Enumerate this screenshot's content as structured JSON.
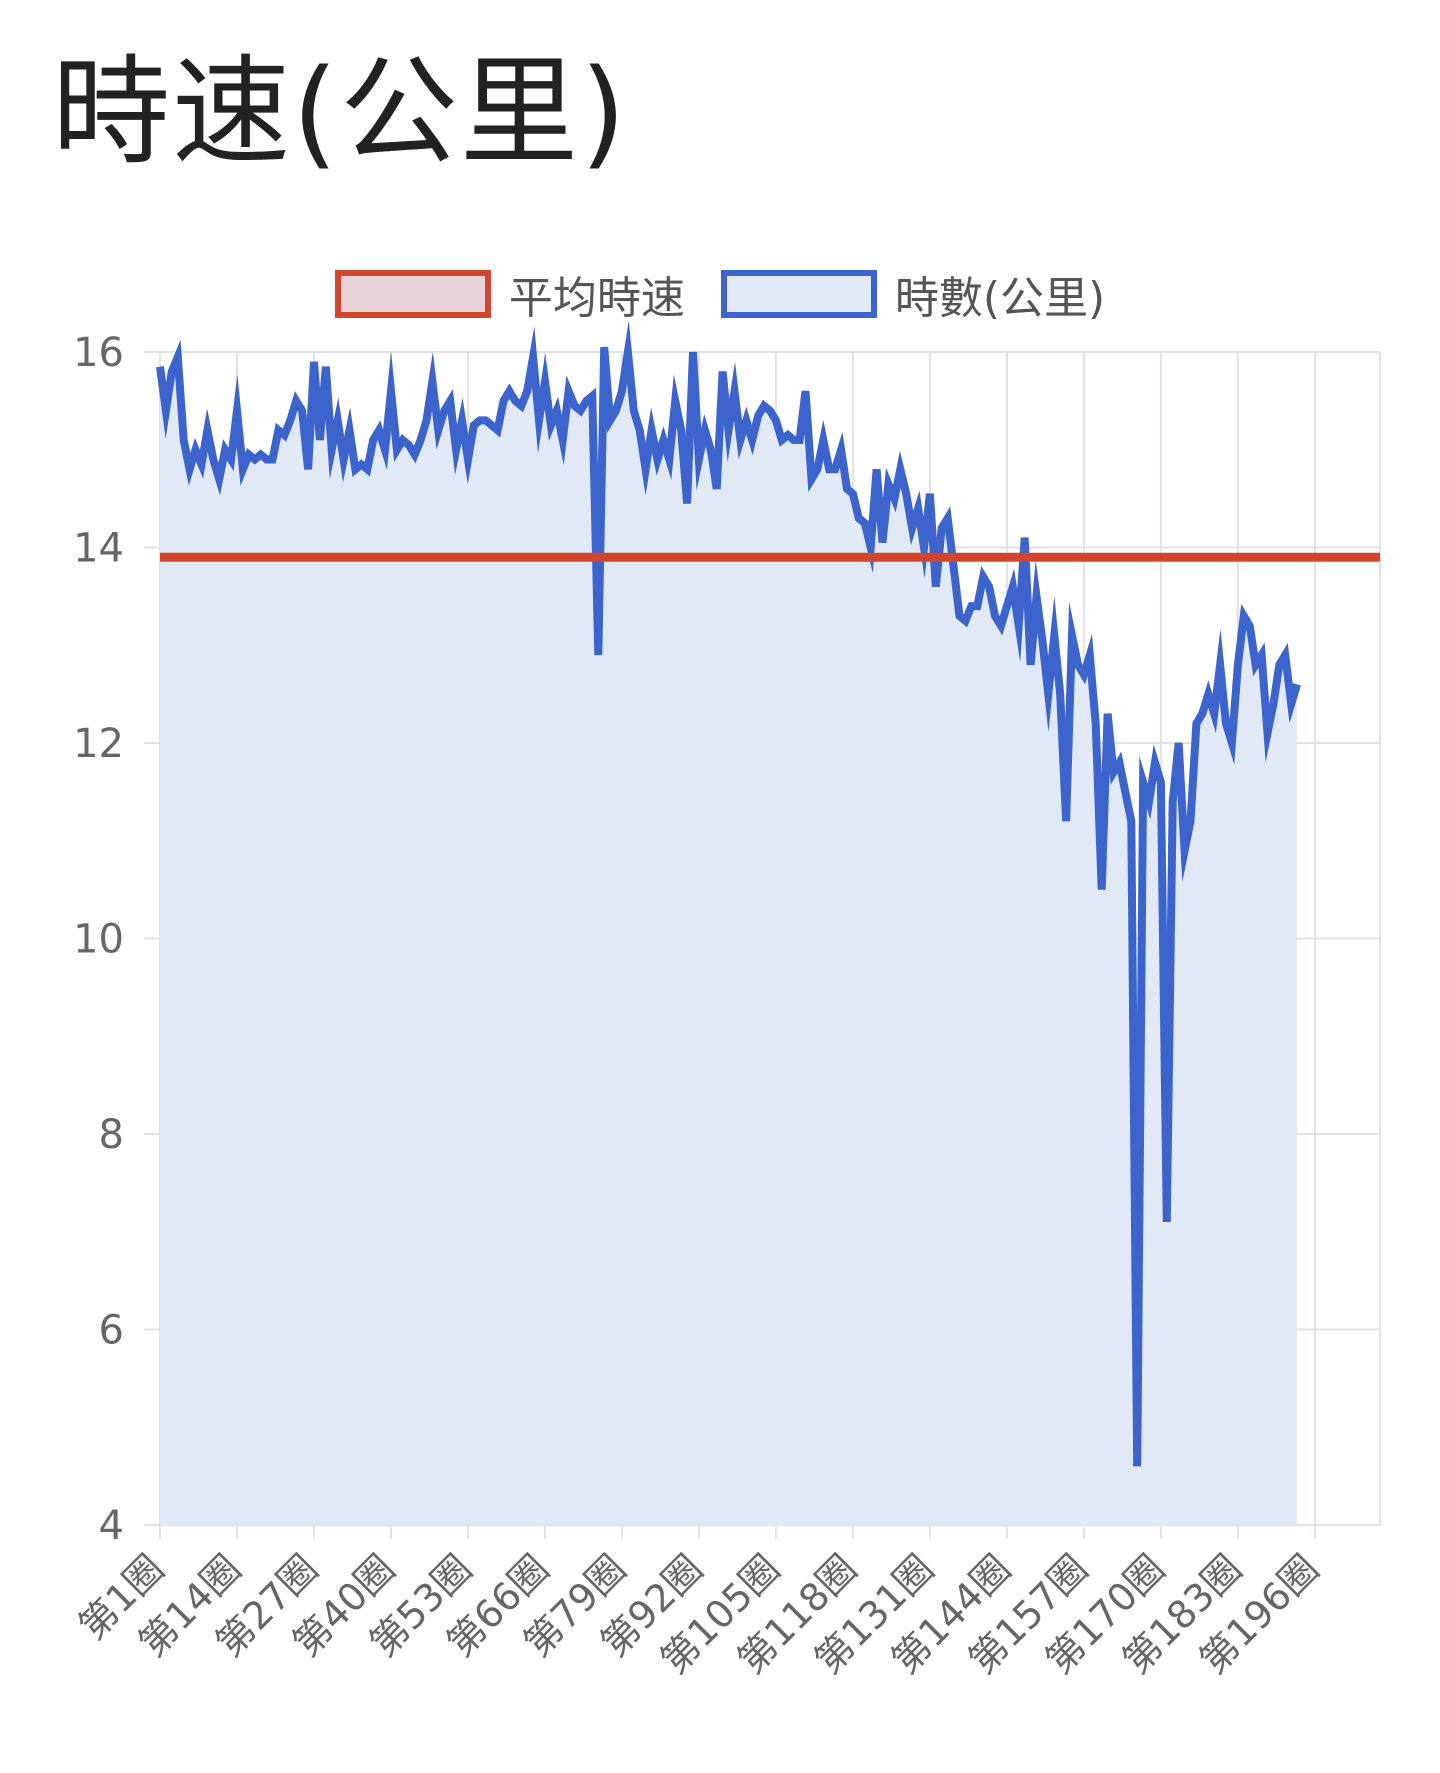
{
  "colors": {
    "avg": "#d2462d",
    "avg_fill": "#e9d3d8",
    "series": "#3c64cc",
    "series_fill": "#e1e8f6",
    "grid": "#e2e2e2"
  },
  "chart_data": {
    "type": "line",
    "title": "時速(公里)",
    "legend_position": "top",
    "grid": true,
    "ylim": [
      4,
      16
    ],
    "yticks": [
      4,
      6,
      8,
      10,
      12,
      14,
      16
    ],
    "xticks": [
      "第1圈",
      "第14圈",
      "第27圈",
      "第40圈",
      "第53圈",
      "第66圈",
      "第79圈",
      "第92圈",
      "第105圈",
      "第118圈",
      "第131圈",
      "第144圈",
      "第157圈",
      "第170圈",
      "第183圈",
      "第196圈"
    ],
    "x_count": 207,
    "series": [
      {
        "name": "平均時速",
        "constant": 13.9,
        "fill": true
      },
      {
        "name": "時數(公里)",
        "fill": true,
        "keypoints": [
          [
            1,
            15.85
          ],
          [
            2,
            15.4
          ],
          [
            3,
            15.8
          ],
          [
            4,
            15.95
          ],
          [
            5,
            15.1
          ],
          [
            6,
            14.8
          ],
          [
            7,
            15.0
          ],
          [
            8,
            14.85
          ],
          [
            9,
            15.2
          ],
          [
            10,
            14.9
          ],
          [
            11,
            14.7
          ],
          [
            12,
            15.0
          ],
          [
            13,
            14.9
          ],
          [
            14,
            15.4
          ],
          [
            15,
            14.8
          ],
          [
            16,
            14.95
          ],
          [
            17,
            14.9
          ],
          [
            18,
            14.95
          ],
          [
            19,
            14.9
          ],
          [
            20,
            14.9
          ],
          [
            21,
            15.2
          ],
          [
            22,
            15.15
          ],
          [
            23,
            15.3
          ],
          [
            24,
            15.5
          ],
          [
            25,
            15.4
          ],
          [
            26,
            14.8
          ],
          [
            27,
            15.9
          ],
          [
            28,
            15.1
          ],
          [
            29,
            15.85
          ],
          [
            30,
            15.0
          ],
          [
            31,
            15.3
          ],
          [
            32,
            14.9
          ],
          [
            33,
            15.2
          ],
          [
            34,
            14.8
          ],
          [
            35,
            14.85
          ],
          [
            36,
            14.8
          ],
          [
            37,
            15.1
          ],
          [
            38,
            15.2
          ],
          [
            39,
            15.0
          ],
          [
            40,
            15.6
          ],
          [
            41,
            15.0
          ],
          [
            42,
            15.1
          ],
          [
            43,
            15.05
          ],
          [
            44,
            14.95
          ],
          [
            45,
            15.1
          ],
          [
            46,
            15.3
          ],
          [
            47,
            15.7
          ],
          [
            48,
            15.2
          ],
          [
            49,
            15.4
          ],
          [
            50,
            15.5
          ],
          [
            51,
            15.0
          ],
          [
            52,
            15.3
          ],
          [
            53,
            14.9
          ],
          [
            54,
            15.25
          ],
          [
            55,
            15.3
          ],
          [
            56,
            15.3
          ],
          [
            57,
            15.25
          ],
          [
            58,
            15.2
          ],
          [
            59,
            15.5
          ],
          [
            60,
            15.6
          ],
          [
            61,
            15.5
          ],
          [
            62,
            15.45
          ],
          [
            63,
            15.6
          ],
          [
            64,
            15.95
          ],
          [
            65,
            15.3
          ],
          [
            66,
            15.7
          ],
          [
            67,
            15.25
          ],
          [
            68,
            15.4
          ],
          [
            69,
            15.1
          ],
          [
            70,
            15.6
          ],
          [
            71,
            15.45
          ],
          [
            72,
            15.4
          ],
          [
            73,
            15.5
          ],
          [
            74,
            15.55
          ],
          [
            75,
            12.9
          ],
          [
            76,
            16.05
          ],
          [
            77,
            15.3
          ],
          [
            78,
            15.4
          ],
          [
            79,
            15.6
          ],
          [
            80,
            16.0
          ],
          [
            81,
            15.4
          ],
          [
            82,
            15.2
          ],
          [
            83,
            14.8
          ],
          [
            84,
            15.2
          ],
          [
            85,
            14.9
          ],
          [
            86,
            15.1
          ],
          [
            87,
            14.9
          ],
          [
            88,
            15.5
          ],
          [
            89,
            15.2
          ],
          [
            90,
            14.45
          ],
          [
            91,
            16.0
          ],
          [
            92,
            14.9
          ],
          [
            93,
            15.2
          ],
          [
            94,
            15.0
          ],
          [
            95,
            14.6
          ],
          [
            96,
            15.8
          ],
          [
            97,
            15.2
          ],
          [
            98,
            15.6
          ],
          [
            99,
            15.1
          ],
          [
            100,
            15.3
          ],
          [
            101,
            15.1
          ],
          [
            102,
            15.35
          ],
          [
            103,
            15.45
          ],
          [
            104,
            15.4
          ],
          [
            105,
            15.3
          ],
          [
            106,
            15.1
          ],
          [
            107,
            15.15
          ],
          [
            108,
            15.1
          ],
          [
            109,
            15.1
          ],
          [
            110,
            15.6
          ],
          [
            111,
            14.7
          ],
          [
            112,
            14.8
          ],
          [
            113,
            15.1
          ],
          [
            114,
            14.8
          ],
          [
            115,
            14.8
          ],
          [
            116,
            15.0
          ],
          [
            117,
            14.6
          ],
          [
            118,
            14.55
          ],
          [
            119,
            14.3
          ],
          [
            120,
            14.25
          ],
          [
            121,
            14.0
          ],
          [
            122,
            14.8
          ],
          [
            123,
            14.05
          ],
          [
            124,
            14.65
          ],
          [
            125,
            14.5
          ],
          [
            126,
            14.8
          ],
          [
            127,
            14.55
          ],
          [
            128,
            14.2
          ],
          [
            129,
            14.4
          ],
          [
            130,
            14.0
          ],
          [
            131,
            14.55
          ],
          [
            132,
            13.6
          ],
          [
            133,
            14.2
          ],
          [
            134,
            14.3
          ],
          [
            135,
            13.8
          ],
          [
            136,
            13.3
          ],
          [
            137,
            13.25
          ],
          [
            138,
            13.4
          ],
          [
            139,
            13.4
          ],
          [
            140,
            13.7
          ],
          [
            141,
            13.6
          ],
          [
            142,
            13.3
          ],
          [
            143,
            13.2
          ],
          [
            144,
            13.4
          ],
          [
            145,
            13.6
          ],
          [
            146,
            13.2
          ],
          [
            147,
            14.1
          ],
          [
            148,
            12.8
          ],
          [
            149,
            13.5
          ],
          [
            150,
            13.05
          ],
          [
            151,
            12.5
          ],
          [
            152,
            13.1
          ],
          [
            153,
            12.5
          ],
          [
            154,
            11.2
          ],
          [
            155,
            13.1
          ],
          [
            156,
            12.8
          ],
          [
            157,
            12.7
          ],
          [
            158,
            12.9
          ],
          [
            159,
            12.2
          ],
          [
            160,
            10.5
          ],
          [
            161,
            12.3
          ],
          [
            162,
            11.7
          ],
          [
            163,
            11.8
          ],
          [
            164,
            11.5
          ],
          [
            165,
            11.2
          ],
          [
            166,
            4.6
          ],
          [
            167,
            11.6
          ],
          [
            168,
            11.4
          ],
          [
            169,
            11.8
          ],
          [
            170,
            11.6
          ],
          [
            171,
            7.1
          ],
          [
            172,
            11.4
          ],
          [
            173,
            12.0
          ],
          [
            174,
            10.9
          ],
          [
            175,
            11.2
          ],
          [
            176,
            12.2
          ],
          [
            177,
            12.3
          ],
          [
            178,
            12.5
          ],
          [
            179,
            12.3
          ],
          [
            180,
            12.8
          ],
          [
            181,
            12.2
          ],
          [
            182,
            12.0
          ],
          [
            183,
            12.8
          ],
          [
            184,
            13.3
          ],
          [
            185,
            13.2
          ],
          [
            186,
            12.8
          ],
          [
            187,
            12.9
          ],
          [
            188,
            12.1
          ],
          [
            189,
            12.4
          ],
          [
            190,
            12.8
          ],
          [
            191,
            12.9
          ],
          [
            192,
            12.4
          ],
          [
            193,
            12.6
          ]
        ]
      }
    ]
  }
}
